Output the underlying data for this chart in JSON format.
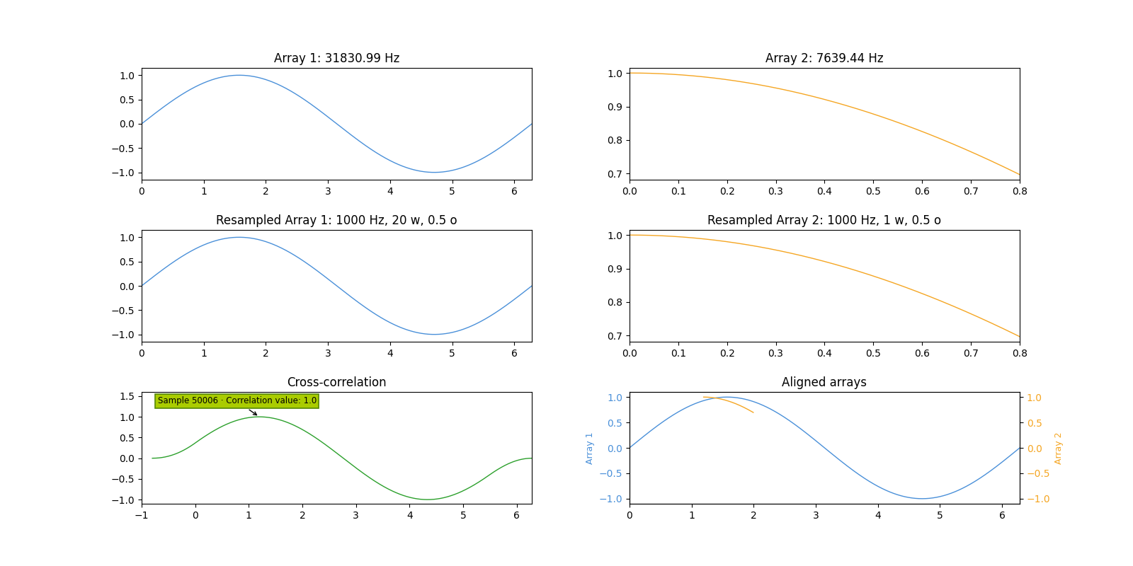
{
  "title_arr1": "Array 1: 31830.99 Hz",
  "title_arr2": "Array 2: 7639.44 Hz",
  "title_res1": "Resampled Array 1: 1000 Hz, 20 w, 0.5 o",
  "title_res2": "Resampled Array 2: 1000 Hz, 1 w, 0.5 o",
  "title_xcorr": "Cross-correlation",
  "title_aligned": "Aligned arrays",
  "color_arr1": "#4a90d9",
  "color_arr2": "#f5a623",
  "color_xcorr": "#2ca02c",
  "annotation_text": "Sample 50006 · Correlation value: 1.0",
  "xcorr_ylim": [
    -1.1,
    1.6
  ],
  "xcorr_yticks": [
    -1.0,
    -0.5,
    0.0,
    0.5,
    1.0,
    1.5
  ]
}
